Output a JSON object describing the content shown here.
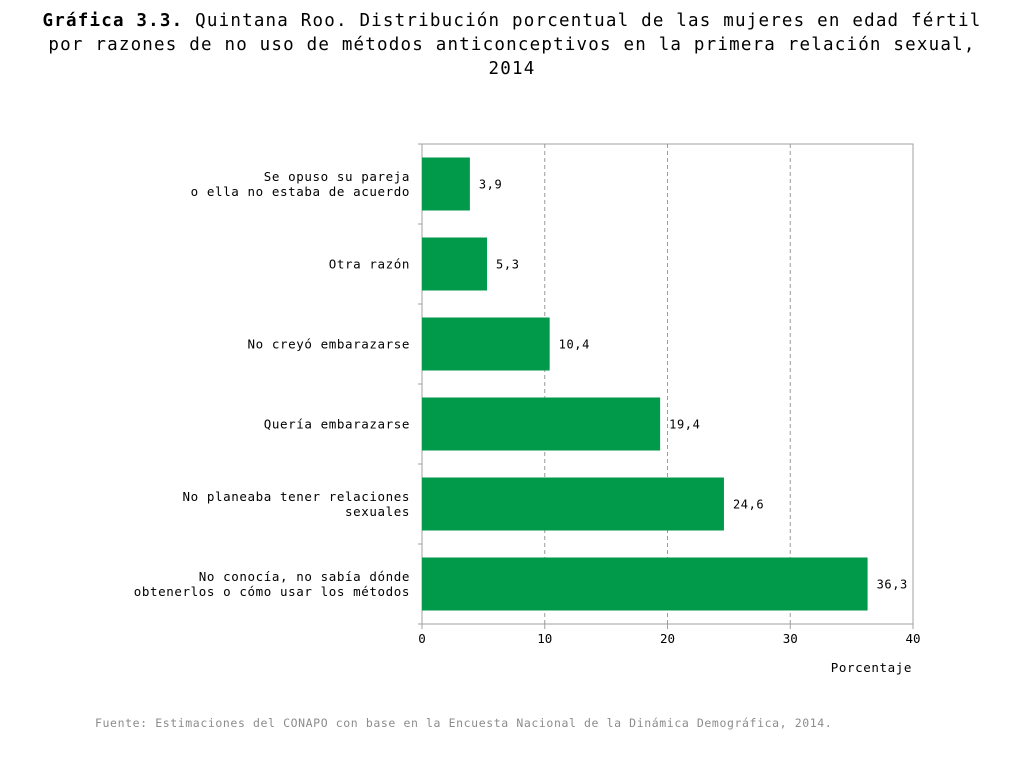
{
  "title": {
    "bold": "Gráfica 3.3.",
    "line1": "Quintana Roo. Distribución porcentual de las mujeres en edad fértil",
    "line2": "por razones de no uso de métodos anticonceptivos en la primera relación sexual, 2014"
  },
  "source": "Fuente: Estimaciones del CONAPO con base en la Encuesta Nacional de la Dinámica Demográfica, 2014.",
  "colors": {
    "bar": "#009a4a",
    "grid": "#9a9a9a",
    "axis": "#a0a0a0"
  },
  "chart_data": {
    "type": "bar",
    "orientation": "horizontal",
    "categories": [
      [
        "Se opuso su pareja",
        "o ella no estaba de acuerdo"
      ],
      [
        "Otra razón"
      ],
      [
        "No creyó embarazarse"
      ],
      [
        "Quería embarazarse"
      ],
      [
        "No planeaba tener relaciones",
        "sexuales"
      ],
      [
        "No conocía, no sabía dónde",
        "obtenerlos o cómo usar los métodos"
      ]
    ],
    "values": [
      3.9,
      5.3,
      10.4,
      19.4,
      24.6,
      36.3
    ],
    "value_labels": [
      "3,9",
      "5,3",
      "10,4",
      "19,4",
      "24,6",
      "36,3"
    ],
    "xticks": [
      0,
      10,
      20,
      30,
      40
    ],
    "xlim": [
      0,
      40
    ],
    "xlabel": "Porcentaje",
    "ylabel": "",
    "grid": "vertical-dashed",
    "legend": "none"
  }
}
